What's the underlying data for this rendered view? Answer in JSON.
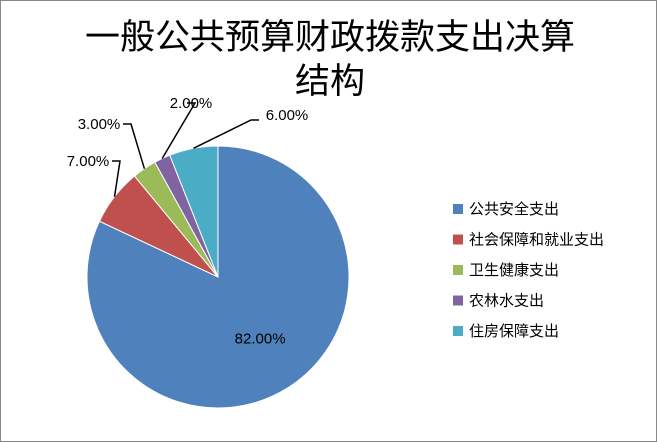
{
  "chart_data": {
    "type": "pie",
    "title_lines": [
      "一般公共预算财政拨款支出决算",
      "结构"
    ],
    "slices": [
      {
        "name": "公共安全支出",
        "value": 82.0,
        "label": "82.00%",
        "color": "#4F81BD"
      },
      {
        "name": "社会保障和就业支出",
        "value": 7.0,
        "label": "7.00%",
        "color": "#C0504D"
      },
      {
        "name": "卫生健康支出",
        "value": 3.0,
        "label": "3.00%",
        "color": "#9BBB59"
      },
      {
        "name": "农林水支出",
        "value": 2.0,
        "label": "2.00%",
        "color": "#8064A2"
      },
      {
        "name": "住房保障支出",
        "value": 6.0,
        "label": "6.00%",
        "color": "#4BACC6"
      }
    ],
    "legend_position": "right"
  }
}
